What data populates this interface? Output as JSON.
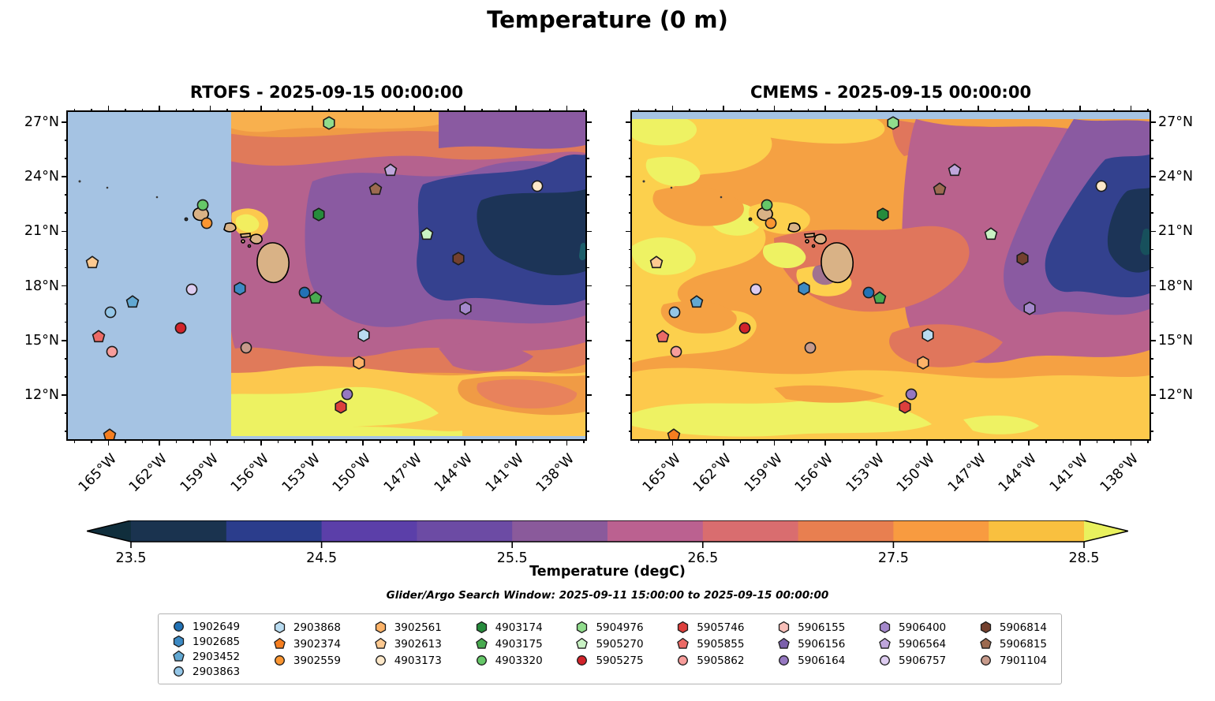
{
  "chart_data": {
    "type": "heatmap",
    "title": "Temperature (0 m)",
    "search_window": "Glider/Argo Search Window: 2025-09-11 15:00:00 to 2025-09-15 00:00:00",
    "panels": [
      {
        "id": "rtofs",
        "title": "RTOFS - 2025-09-15 00:00:00",
        "ylabel_side": "left",
        "masked_region": "west of ~158.6W shown as light blue (no data)",
        "top_stripe": false,
        "bottom_stripe": true
      },
      {
        "id": "cmems",
        "title": "CMEMS - 2025-09-15 00:00:00",
        "ylabel_side": "right",
        "masked_region": "thin light-blue stripe along 27N top edge",
        "top_stripe": true,
        "bottom_stripe": false
      }
    ],
    "axes": {
      "lon_min": -167.4,
      "lon_max": -136.9,
      "lat_min": 9.57,
      "lat_max": 27.56,
      "xtick_lons": [
        -165,
        -162,
        -159,
        -156,
        -153,
        -150,
        -147,
        -144,
        -141,
        -138
      ],
      "xtick_labels": [
        "165°W",
        "162°W",
        "159°W",
        "156°W",
        "153°W",
        "150°W",
        "147°W",
        "144°W",
        "141°W",
        "138°W"
      ],
      "ytick_lats": [
        27,
        24,
        21,
        18,
        15,
        12
      ],
      "ytick_labels": [
        "27°N",
        "24°N",
        "21°N",
        "18°N",
        "15°N",
        "12°N"
      ],
      "minor_tick_step_deg": 1,
      "grid": false
    },
    "colorbar": {
      "label": "Temperature (degC)",
      "tick_values": [
        23.5,
        24.5,
        25.5,
        26.5,
        27.5,
        28.5
      ],
      "tick_labels": [
        "23.5",
        "24.5",
        "25.5",
        "26.5",
        "27.5",
        "28.5"
      ],
      "segment_range": [
        23.5,
        28.5
      ],
      "segments": [
        "#1a334f",
        "#2b3d8c",
        "#5b3fa9",
        "#6c4ba4",
        "#8a5a9b",
        "#bb6190",
        "#d96d6f",
        "#e87f50",
        "#f89b40",
        "#f9c03f"
      ],
      "under_color": "#102e3c",
      "over_color": "#e9f15e"
    },
    "map_colors": {
      "masked": "#a5c3e3",
      "land": "#d9b286",
      "coastline": "#000000"
    },
    "floats": [
      {
        "id": "1902649",
        "shape": "circle",
        "color": "#2272b5",
        "x_pct": 45.8,
        "y_pct": 55.2,
        "lon": -153.4,
        "lat": 17.6
      },
      {
        "id": "1902685",
        "shape": "hexagon",
        "color": "#3d8ac4",
        "x_pct": 33.3,
        "y_pct": 54.0,
        "lon": -157.2,
        "lat": 17.8
      },
      {
        "id": "2903452",
        "shape": "pentagon",
        "color": "#62a8d2",
        "x_pct": 12.5,
        "y_pct": 58.1,
        "lon": -163.6,
        "lat": 17.1
      },
      {
        "id": "2903863",
        "shape": "circle",
        "color": "#94c6e7",
        "x_pct": 8.2,
        "y_pct": 61.2,
        "lon": -164.9,
        "lat": 16.6
      },
      {
        "id": "2903868",
        "shape": "hexagon",
        "color": "#b9dcf1",
        "x_pct": 57.1,
        "y_pct": 68.2,
        "lon": -150.0,
        "lat": 15.3
      },
      {
        "id": "3902374",
        "shape": "pentagon",
        "color": "#f57e20",
        "x_pct": 8.1,
        "y_pct": 98.8,
        "lon": -164.9,
        "lat": 10.0
      },
      {
        "id": "3902559",
        "shape": "circle",
        "color": "#fb9632",
        "x_pct": 26.9,
        "y_pct": 34.0,
        "lon": -159.2,
        "lat": 21.4
      },
      {
        "id": "3902561",
        "shape": "hexagon",
        "color": "#fdb368",
        "x_pct": 56.3,
        "y_pct": 76.6,
        "lon": -150.2,
        "lat": 13.8
      },
      {
        "id": "3902613",
        "shape": "pentagon",
        "color": "#fdc990",
        "x_pct": 4.7,
        "y_pct": 46.0,
        "lon": -166.0,
        "lat": 19.3
      },
      {
        "id": "4903173",
        "shape": "circle",
        "color": "#fde8c9",
        "x_pct": 90.7,
        "y_pct": 22.7,
        "lon": -139.7,
        "lat": 23.5
      },
      {
        "id": "4903174",
        "shape": "hexagon",
        "color": "#268b3c",
        "x_pct": 48.5,
        "y_pct": 31.3,
        "lon": -152.6,
        "lat": 21.9
      },
      {
        "id": "4903175",
        "shape": "pentagon",
        "color": "#49ab50",
        "x_pct": 47.9,
        "y_pct": 56.9,
        "lon": -152.8,
        "lat": 17.3
      },
      {
        "id": "4903320",
        "shape": "circle",
        "color": "#65c768",
        "x_pct": 26.0,
        "y_pct": 28.4,
        "lon": -159.5,
        "lat": 22.4
      },
      {
        "id": "5904976",
        "shape": "hexagon",
        "color": "#90dc8c",
        "x_pct": 50.5,
        "y_pct": 3.4,
        "lon": -152.0,
        "lat": 27.0
      },
      {
        "id": "5905270",
        "shape": "pentagon",
        "color": "#c9f2c4",
        "x_pct": 69.3,
        "y_pct": 37.3,
        "lon": -146.3,
        "lat": 20.8
      },
      {
        "id": "5905275",
        "shape": "circle",
        "color": "#d2232a",
        "x_pct": 21.8,
        "y_pct": 66.0,
        "lon": -160.8,
        "lat": 15.7
      },
      {
        "id": "5905746",
        "shape": "hexagon",
        "color": "#dd3f3c",
        "x_pct": 52.8,
        "y_pct": 90.1,
        "lon": -151.3,
        "lat": 11.3
      },
      {
        "id": "5905855",
        "shape": "pentagon",
        "color": "#ec6a66",
        "x_pct": 6.0,
        "y_pct": 68.7,
        "lon": -165.6,
        "lat": 15.2
      },
      {
        "id": "5905862",
        "shape": "circle",
        "color": "#f79d9b",
        "x_pct": 8.5,
        "y_pct": 73.3,
        "lon": -164.8,
        "lat": 14.4
      },
      {
        "id": "5906155",
        "shape": "hexagon",
        "color": "#f8bfb9",
        "x_pct": null,
        "y_pct": null,
        "lon": null,
        "lat": null
      },
      {
        "id": "5906156",
        "shape": "pentagon",
        "color": "#7b60ab",
        "x_pct": null,
        "y_pct": null,
        "lon": null,
        "lat": null
      },
      {
        "id": "5906164",
        "shape": "circle",
        "color": "#9678c1",
        "x_pct": 54.0,
        "y_pct": 86.3,
        "lon": -150.9,
        "lat": 12.0
      },
      {
        "id": "5906400",
        "shape": "hexagon",
        "color": "#a488cb",
        "x_pct": 76.9,
        "y_pct": 60.0,
        "lon": -143.9,
        "lat": 16.8
      },
      {
        "id": "5906564",
        "shape": "pentagon",
        "color": "#bfa6dc",
        "x_pct": 62.4,
        "y_pct": 17.8,
        "lon": -148.4,
        "lat": 24.4
      },
      {
        "id": "5906757",
        "shape": "circle",
        "color": "#ddccf0",
        "x_pct": 24.0,
        "y_pct": 54.2,
        "lon": -160.1,
        "lat": 17.8
      },
      {
        "id": "5906814",
        "shape": "hexagon",
        "color": "#73402e",
        "x_pct": 75.4,
        "y_pct": 44.8,
        "lon": -144.4,
        "lat": 19.5
      },
      {
        "id": "5906815",
        "shape": "pentagon",
        "color": "#9c6a50",
        "x_pct": 59.4,
        "y_pct": 23.6,
        "lon": -149.3,
        "lat": 23.3
      },
      {
        "id": "7901104",
        "shape": "circle",
        "color": "#c79a8b",
        "x_pct": 34.4,
        "y_pct": 72.0,
        "lon": -156.9,
        "lat": 14.6
      }
    ]
  }
}
